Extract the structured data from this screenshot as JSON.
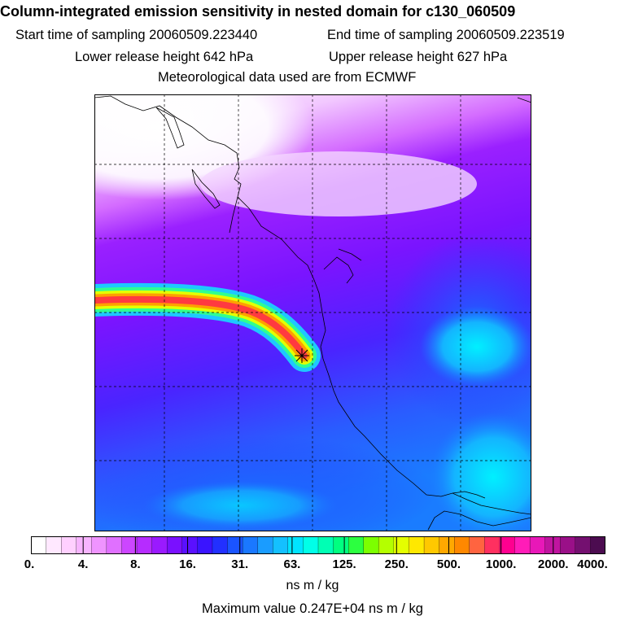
{
  "header": {
    "title": "Column-integrated emission sensitivity in nested domain for c130_060509",
    "start_time": "Start time of sampling 20060509.223440",
    "end_time": "End time of sampling 20060509.223519",
    "lower_height": "Lower release height  642 hPa",
    "upper_height": "Upper release height  627 hPa",
    "met_data": "Meteorological data used are from ECMWF"
  },
  "colorbar": {
    "tick_labels": [
      "0.",
      "4.",
      "8.",
      "16.",
      "31.",
      "63.",
      "125.",
      "250.",
      "500.",
      "1000.",
      "2000.",
      "4000."
    ],
    "colors": [
      "#ffffff",
      "#ffe8ff",
      "#ffd0ff",
      "#f7b4ff",
      "#ef94ff",
      "#e070ff",
      "#cc46ff",
      "#b62cff",
      "#9a1aff",
      "#7a10ff",
      "#5a10ff",
      "#3a14ff",
      "#2230ff",
      "#1a54ff",
      "#1a78ff",
      "#1a9cff",
      "#14c0ff",
      "#00e4ff",
      "#00ffe8",
      "#00ffb4",
      "#00ff80",
      "#2cff40",
      "#7cff00",
      "#b4ff00",
      "#e4ff00",
      "#ffe800",
      "#ffc800",
      "#ffa800",
      "#ff8800",
      "#ff6440",
      "#ff3060",
      "#ff0090",
      "#ff1cb8",
      "#e818b8",
      "#c014a0",
      "#9a1088",
      "#741070",
      "#4c0c50"
    ],
    "units": "ns m / kg"
  },
  "footer": {
    "max_value": "Maximum value  0.247E+04 ns m / kg"
  },
  "map": {
    "release_marker": "release-point-star"
  }
}
